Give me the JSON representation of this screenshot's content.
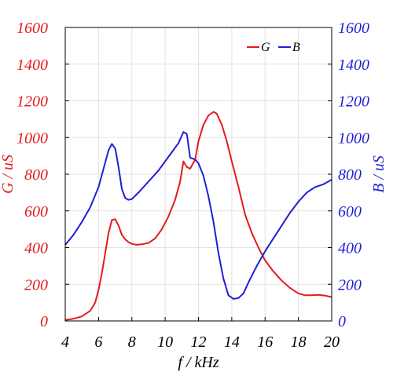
{
  "chart_data": {
    "type": "line",
    "xlabel": "f / kHz",
    "ylabel_left": "G / uS",
    "ylabel_right": "B / uS",
    "xlim": [
      4,
      20
    ],
    "ylim_left": [
      0,
      1600
    ],
    "ylim_right": [
      0,
      1600
    ],
    "x_ticks": [
      "4",
      "6",
      "8",
      "10",
      "12",
      "14",
      "16",
      "18",
      "20"
    ],
    "y_ticks_left": [
      "0",
      "200",
      "400",
      "600",
      "800",
      "1000",
      "1200",
      "1400",
      "1600"
    ],
    "y_ticks_right": [
      "0",
      "200",
      "400",
      "600",
      "800",
      "1000",
      "1200",
      "1400",
      "1600"
    ],
    "grid": true,
    "legend_position": "top-right",
    "colors": {
      "G": "#e41a1c",
      "B": "#1f1fd6",
      "grid": "#e2e2e2",
      "axes": "#000000"
    },
    "series": [
      {
        "name": "G",
        "axis": "left",
        "color": "#e41a1c",
        "x": [
          4.0,
          4.5,
          5.0,
          5.5,
          5.8,
          6.0,
          6.2,
          6.4,
          6.6,
          6.8,
          7.0,
          7.2,
          7.4,
          7.6,
          7.8,
          8.0,
          8.3,
          8.6,
          9.0,
          9.4,
          9.8,
          10.2,
          10.6,
          10.9,
          11.1,
          11.3,
          11.5,
          11.8,
          12.0,
          12.3,
          12.6,
          12.9,
          13.1,
          13.4,
          13.7,
          14.0,
          14.4,
          14.8,
          15.2,
          15.6,
          16.0,
          16.5,
          17.0,
          17.5,
          18.0,
          18.4,
          18.8,
          19.2,
          19.6,
          20.0
        ],
        "y": [
          5,
          12,
          25,
          55,
          100,
          170,
          260,
          370,
          480,
          550,
          555,
          520,
          470,
          445,
          430,
          420,
          415,
          418,
          425,
          450,
          500,
          570,
          660,
          760,
          870,
          840,
          830,
          880,
          980,
          1070,
          1120,
          1140,
          1130,
          1070,
          980,
          870,
          730,
          580,
          480,
          400,
          330,
          270,
          220,
          180,
          150,
          140,
          140,
          142,
          138,
          130
        ]
      },
      {
        "name": "B",
        "axis": "right",
        "color": "#1f1fd6",
        "x": [
          4.0,
          4.5,
          5.0,
          5.5,
          6.0,
          6.3,
          6.6,
          6.8,
          7.0,
          7.2,
          7.4,
          7.6,
          7.8,
          8.0,
          8.4,
          8.8,
          9.2,
          9.6,
          10.0,
          10.4,
          10.8,
          11.0,
          11.1,
          11.3,
          11.5,
          11.8,
          12.0,
          12.3,
          12.6,
          12.9,
          13.2,
          13.5,
          13.8,
          14.1,
          14.4,
          14.7,
          15.0,
          15.5,
          16.0,
          16.5,
          17.0,
          17.5,
          18.0,
          18.5,
          19.0,
          19.5,
          20.0
        ],
        "y": [
          415,
          470,
          540,
          620,
          730,
          830,
          930,
          965,
          940,
          840,
          720,
          670,
          660,
          665,
          700,
          740,
          780,
          820,
          870,
          920,
          970,
          1010,
          1030,
          1020,
          890,
          880,
          860,
          790,
          680,
          540,
          370,
          230,
          140,
          120,
          125,
          150,
          210,
          300,
          380,
          450,
          520,
          590,
          650,
          700,
          730,
          745,
          770
        ]
      }
    ]
  }
}
